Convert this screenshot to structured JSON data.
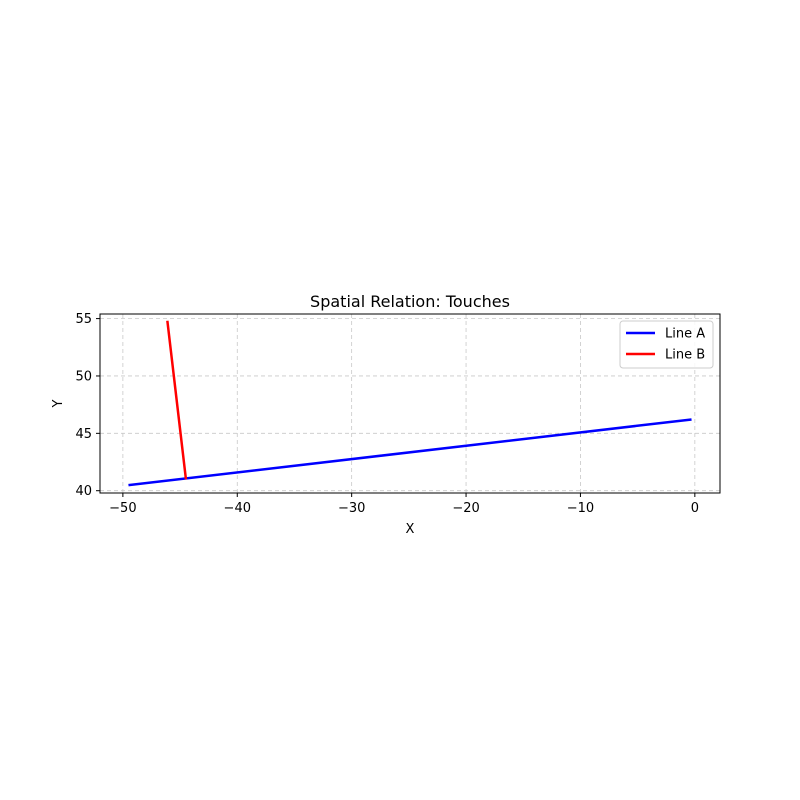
{
  "chart_data": {
    "type": "line",
    "title": "Spatial Relation: Touches",
    "xlabel": "X",
    "ylabel": "Y",
    "xlim": [
      -52.0,
      2.2
    ],
    "ylim": [
      39.8,
      55.4
    ],
    "xticks": [
      -50,
      -40,
      -30,
      -20,
      -10,
      0
    ],
    "xtick_labels": [
      "−50",
      "−40",
      "−30",
      "−20",
      "−10",
      "0"
    ],
    "yticks": [
      40,
      45,
      50,
      55
    ],
    "ytick_labels": [
      "40",
      "45",
      "50",
      "55"
    ],
    "grid": true,
    "grid_style": "dashed",
    "legend_position": "top-right",
    "series": [
      {
        "name": "Line A",
        "color": "#0000ff",
        "x": [
          -49.4,
          -0.4
        ],
        "y": [
          40.5,
          46.2
        ]
      },
      {
        "name": "Line B",
        "color": "#ff0000",
        "x": [
          -46.1,
          -44.5
        ],
        "y": [
          54.7,
          41.1
        ]
      }
    ]
  }
}
